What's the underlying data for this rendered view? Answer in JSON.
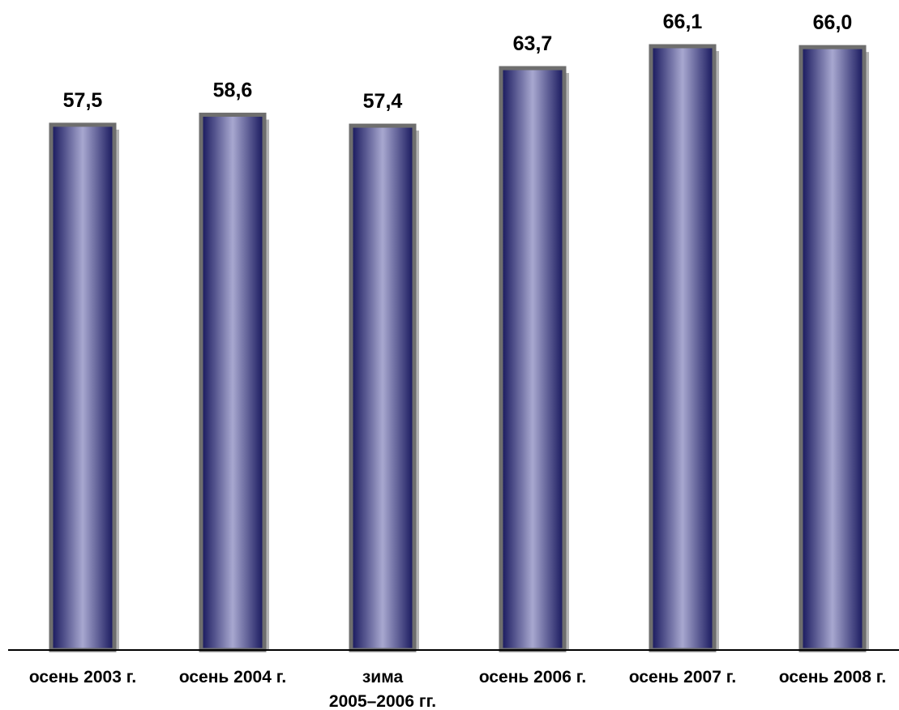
{
  "chart_data": {
    "type": "bar",
    "categories": [
      [
        "осень 2003 г."
      ],
      [
        "осень 2004 г."
      ],
      [
        "зима",
        "2005–2006 гг."
      ],
      [
        "осень 2006 г."
      ],
      [
        "осень 2007 г."
      ],
      [
        "осень 2008 г."
      ]
    ],
    "values": [
      57.5,
      58.6,
      57.4,
      63.7,
      66.1,
      66.0
    ],
    "value_labels": [
      "57,5",
      "58,6",
      "57,4",
      "63,7",
      "66,1",
      "66,0"
    ],
    "title": "",
    "xlabel": "",
    "ylabel": "",
    "ylim": [
      0,
      72
    ],
    "grid": false,
    "legend": "none",
    "colors": {
      "bar_dark": "#14145a",
      "bar_light": "#a8a8d0",
      "bar_border": "#6e6e6e",
      "bar_shadow": "#b4b4b4",
      "axis": "#000000"
    }
  }
}
